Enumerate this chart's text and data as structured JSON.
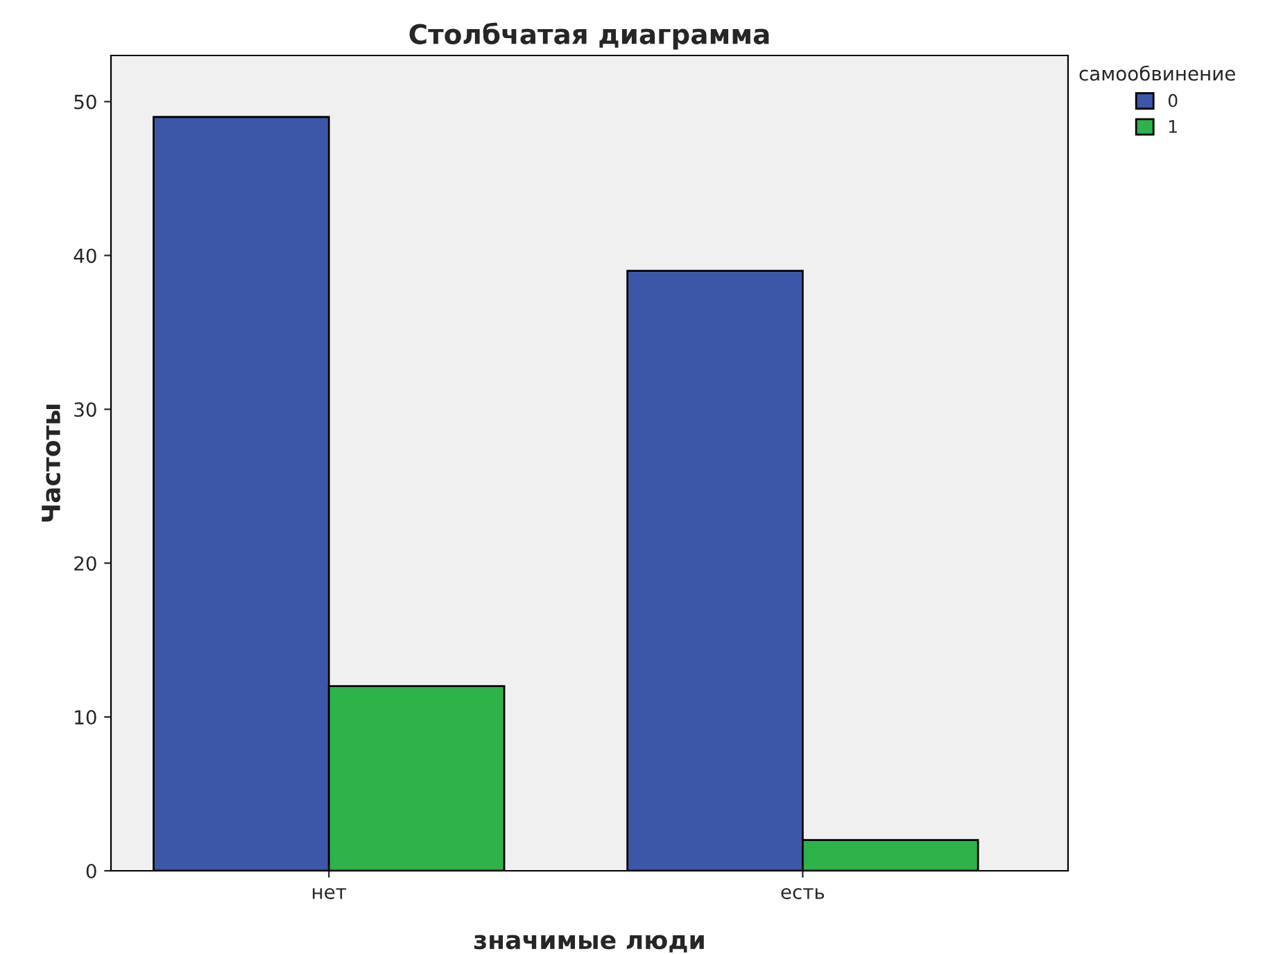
{
  "chart_data": {
    "type": "bar",
    "title": "Столбчатая диаграмма",
    "xlabel": "значимые люди",
    "ylabel": "Частоты",
    "legend_title": "самообвинение",
    "categories": [
      "нет",
      "есть"
    ],
    "series": [
      {
        "name": "0",
        "color": "#3d57a8",
        "values": [
          49,
          39
        ]
      },
      {
        "name": "1",
        "color": "#2db34a",
        "values": [
          12,
          2
        ]
      }
    ],
    "ylim": [
      0,
      53
    ],
    "yticks": [
      0,
      10,
      20,
      30,
      40,
      50
    ],
    "grid": false,
    "legend": "top right"
  }
}
